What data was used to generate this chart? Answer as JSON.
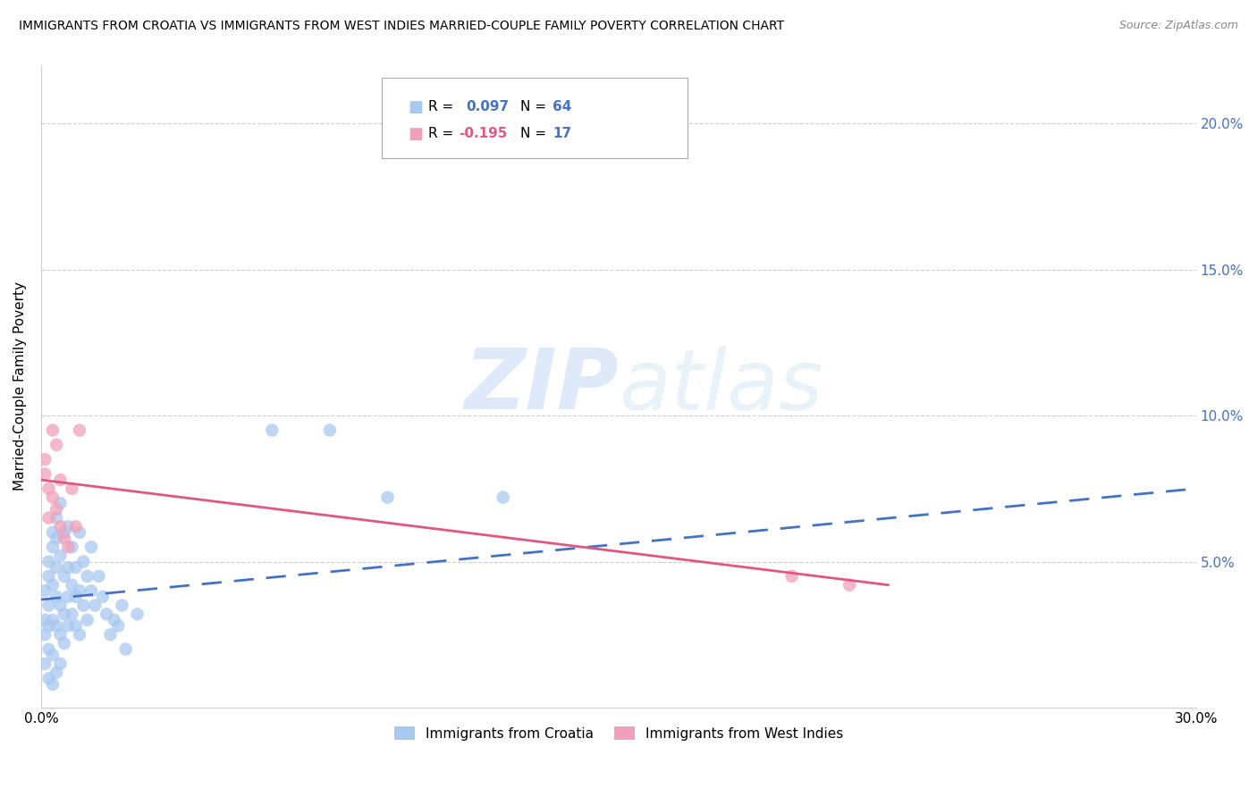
{
  "title": "IMMIGRANTS FROM CROATIA VS IMMIGRANTS FROM WEST INDIES MARRIED-COUPLE FAMILY POVERTY CORRELATION CHART",
  "source": "Source: ZipAtlas.com",
  "ylabel": "Married-Couple Family Poverty",
  "xlabel_croatia": "Immigrants from Croatia",
  "xlabel_west_indies": "Immigrants from West Indies",
  "xlim": [
    0.0,
    0.3
  ],
  "ylim": [
    0.0,
    0.22
  ],
  "yticks": [
    0.0,
    0.05,
    0.1,
    0.15,
    0.2
  ],
  "ytick_labels": [
    "",
    "5.0%",
    "10.0%",
    "15.0%",
    "20.0%"
  ],
  "xticks": [
    0.0,
    0.05,
    0.1,
    0.15,
    0.2,
    0.25,
    0.3
  ],
  "xtick_labels": [
    "0.0%",
    "",
    "",
    "",
    "",
    "",
    "30.0%"
  ],
  "r_croatia": 0.097,
  "n_croatia": 64,
  "r_west_indies": -0.195,
  "n_west_indies": 17,
  "color_croatia": "#a8c8f0",
  "color_west_indies": "#f0a0b8",
  "color_line_croatia": "#4472c4",
  "color_line_west_indies": "#e05880",
  "color_right_axis": "#4472c4",
  "watermark_zip": "ZIP",
  "watermark_atlas": "atlas",
  "croatia_x": [
    0.001,
    0.001,
    0.001,
    0.001,
    0.002,
    0.002,
    0.002,
    0.002,
    0.002,
    0.002,
    0.003,
    0.003,
    0.003,
    0.003,
    0.003,
    0.003,
    0.004,
    0.004,
    0.004,
    0.004,
    0.004,
    0.004,
    0.005,
    0.005,
    0.005,
    0.005,
    0.005,
    0.006,
    0.006,
    0.006,
    0.006,
    0.007,
    0.007,
    0.007,
    0.007,
    0.008,
    0.008,
    0.008,
    0.009,
    0.009,
    0.009,
    0.01,
    0.01,
    0.01,
    0.011,
    0.011,
    0.012,
    0.012,
    0.013,
    0.013,
    0.014,
    0.015,
    0.016,
    0.017,
    0.018,
    0.019,
    0.02,
    0.021,
    0.022,
    0.025,
    0.06,
    0.075,
    0.09,
    0.12
  ],
  "croatia_y": [
    0.03,
    0.04,
    0.025,
    0.015,
    0.035,
    0.045,
    0.028,
    0.05,
    0.02,
    0.01,
    0.055,
    0.042,
    0.03,
    0.018,
    0.06,
    0.008,
    0.048,
    0.038,
    0.028,
    0.058,
    0.012,
    0.065,
    0.035,
    0.052,
    0.025,
    0.07,
    0.015,
    0.045,
    0.032,
    0.06,
    0.022,
    0.048,
    0.038,
    0.028,
    0.062,
    0.042,
    0.032,
    0.055,
    0.038,
    0.028,
    0.048,
    0.06,
    0.04,
    0.025,
    0.035,
    0.05,
    0.045,
    0.03,
    0.04,
    0.055,
    0.035,
    0.045,
    0.038,
    0.032,
    0.025,
    0.03,
    0.028,
    0.035,
    0.02,
    0.032,
    0.095,
    0.095,
    0.072,
    0.072
  ],
  "west_indies_x": [
    0.001,
    0.001,
    0.002,
    0.002,
    0.003,
    0.003,
    0.004,
    0.004,
    0.005,
    0.005,
    0.006,
    0.007,
    0.008,
    0.009,
    0.01,
    0.195,
    0.21
  ],
  "west_indies_y": [
    0.08,
    0.085,
    0.065,
    0.075,
    0.072,
    0.095,
    0.068,
    0.09,
    0.062,
    0.078,
    0.058,
    0.055,
    0.075,
    0.062,
    0.095,
    0.045,
    0.042
  ],
  "croatia_line_x": [
    0.0,
    0.3
  ],
  "croatia_line_y": [
    0.037,
    0.075
  ],
  "wi_line_x": [
    0.0,
    0.22
  ],
  "wi_line_y": [
    0.078,
    0.042
  ]
}
